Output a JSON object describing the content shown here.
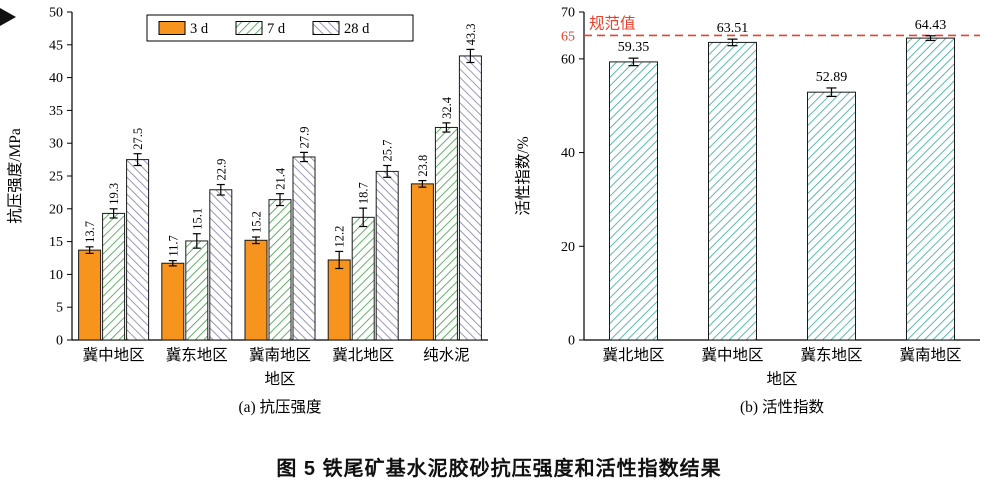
{
  "figure": {
    "caption": "图 5  铁尾矿基水泥胶砂抗压强度和活性指数结果"
  },
  "chart_data": [
    {
      "type": "bar",
      "panel": "a",
      "subtitle": "(a) 抗压强度",
      "xlabel": "地区",
      "ylabel": "抗压强度/MPa",
      "ylim": [
        0,
        50
      ],
      "yticks": [
        0,
        5,
        10,
        15,
        20,
        25,
        30,
        35,
        40,
        45,
        50
      ],
      "categories": [
        "冀中地区",
        "冀东地区",
        "冀南地区",
        "冀北地区",
        "纯水泥"
      ],
      "legend_position": "top",
      "series": [
        {
          "name": "3 d",
          "color": "#F7941E",
          "pattern": "solid",
          "values": [
            13.7,
            11.7,
            15.2,
            12.2,
            23.8
          ],
          "errors": [
            0.5,
            0.4,
            0.5,
            1.3,
            0.5
          ]
        },
        {
          "name": "7 d",
          "color": "#3F9B45",
          "pattern": "hatch-forward",
          "values": [
            19.3,
            15.1,
            21.4,
            18.7,
            32.4
          ],
          "errors": [
            0.7,
            1.1,
            0.9,
            1.4,
            0.7
          ]
        },
        {
          "name": "28 d",
          "color": "#807FA8",
          "pattern": "hatch-back",
          "values": [
            27.5,
            22.9,
            27.9,
            25.7,
            43.3
          ],
          "errors": [
            0.9,
            0.8,
            0.7,
            0.9,
            1.0
          ]
        }
      ]
    },
    {
      "type": "bar",
      "panel": "b",
      "subtitle": "(b) 活性指数",
      "xlabel": "地区",
      "ylabel": "活性指数/%",
      "ylim": [
        0,
        70
      ],
      "yticks": [
        0,
        20,
        40,
        60,
        70
      ],
      "categories": [
        "冀北地区",
        "冀中地区",
        "冀东地区",
        "冀南地区"
      ],
      "values": [
        59.35,
        63.51,
        52.89,
        64.43
      ],
      "errors": [
        0.8,
        0.7,
        0.9,
        0.5
      ],
      "bar_color": "#35A79F",
      "bar_pattern": "hatch-forward",
      "reference_line": {
        "value": 65,
        "label": "规范值",
        "color": "#E8412C"
      }
    }
  ]
}
